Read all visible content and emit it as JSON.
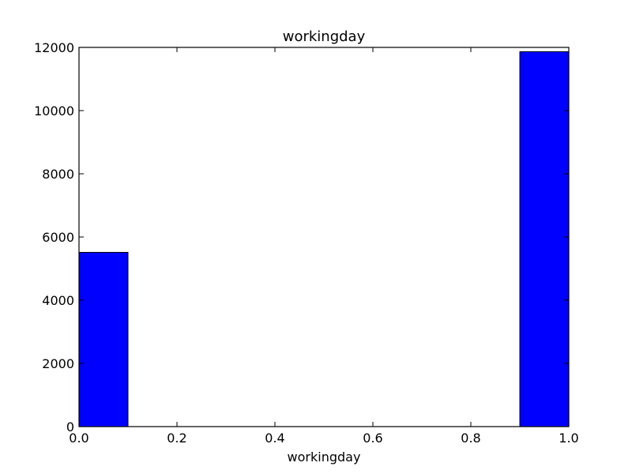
{
  "chart_data": {
    "type": "bar",
    "title": "workingday",
    "xlabel": "workingday",
    "ylabel": "",
    "xlim": [
      0.0,
      1.0
    ],
    "ylim": [
      0,
      12000
    ],
    "x_ticks": [
      "0.0",
      "0.2",
      "0.4",
      "0.6",
      "0.8",
      "1.0"
    ],
    "y_ticks": [
      "0",
      "2000",
      "4000",
      "6000",
      "8000",
      "10000",
      "12000"
    ],
    "grid": false,
    "legend": "none",
    "bar_color": "#0000ff",
    "bins": [
      {
        "x0": 0.0,
        "x1": 0.1,
        "value": 5514
      },
      {
        "x0": 0.9,
        "x1": 1.0,
        "value": 11865
      }
    ]
  }
}
